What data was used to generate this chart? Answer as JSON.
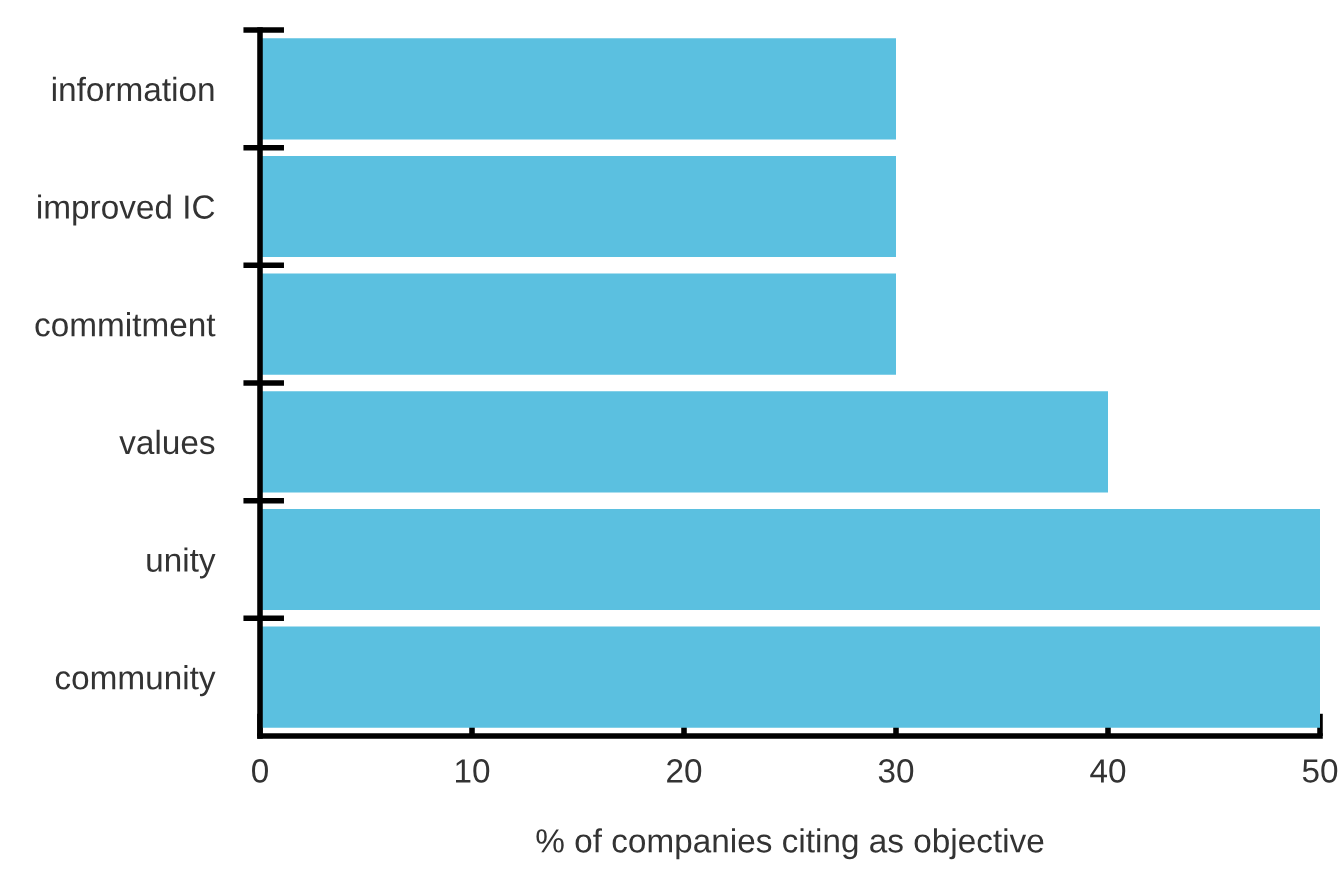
{
  "chart_data": {
    "type": "bar",
    "orientation": "horizontal",
    "xlabel": "% of companies citing as objective",
    "categories": [
      "information",
      "improved IC",
      "commitment",
      "values",
      "unity",
      "community"
    ],
    "values": [
      30,
      30,
      30,
      40,
      50,
      50
    ],
    "color": "#5bc0e0",
    "xlim": [
      0,
      50
    ],
    "xticks": [
      0,
      10,
      20,
      30,
      40,
      50
    ],
    "grid": false
  }
}
